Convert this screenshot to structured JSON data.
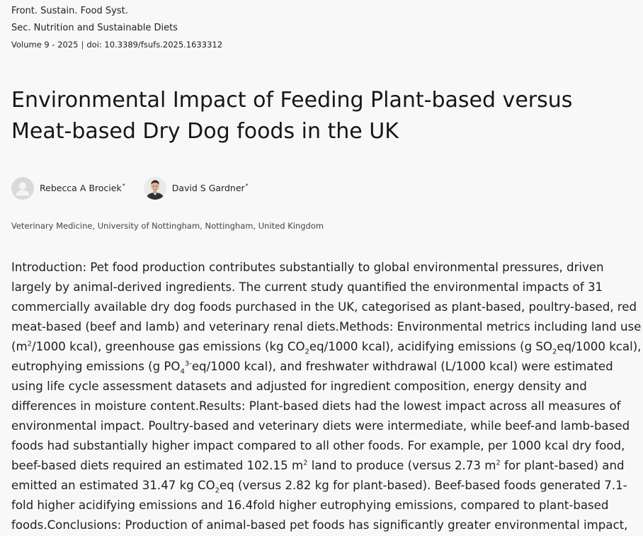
{
  "header": {
    "journal": "Front. Sustain. Food Syst.",
    "section": "Sec. Nutrition and Sustainable Diets",
    "volume": "Volume 9 - 2025",
    "separator": "|",
    "doi": "doi: 10.3389/fsufs.2025.1633312"
  },
  "title": "Environmental Impact of Feeding Plant-based versus Meat-based Dry Dog foods in the UK",
  "authors": [
    {
      "name": "Rebecca A Brociek",
      "marker": "*",
      "avatar": "placeholder-avatar-icon"
    },
    {
      "name": "David S Gardner",
      "marker": "*",
      "avatar": "author-photo"
    }
  ],
  "affiliation": "Veterinary Medicine, University of Nottingham, Nottingham, United Kingdom",
  "abstract": {
    "parts": [
      "Introduction: Pet food production contributes substantially to global environmental pressures, driven largely by animal-derived ingredients. The current study quantified the environmental impacts of 31 commercially available dry dog foods purchased in the UK, categorised as plant-based, poultry-based, red meat-based (beef and lamb) and veterinary renal diets.Methods: Environmental metrics including land use (m",
      "2",
      "/1000 kcal), greenhouse gas emissions (kg CO",
      "2",
      "eq/1000 kcal), acidifying emissions (g SO",
      "2",
      "eq/1000 kcal), eutrophying emissions (g PO",
      "4",
      "3-",
      "eq/1000 kcal), and freshwater withdrawal (L/1000 kcal) were estimated using life cycle assessment datasets and adjusted for ingredient composition, energy density and differences in moisture content.Results: Plant-based diets had the lowest impact across all measures of environmental impact. Poultry-based and veterinary diets were intermediate, while beef-and lamb-based foods had substantially higher impact compared to all other foods. For example, per 1000 kcal dry food, beef-based diets required an estimated 102.15 m",
      "2",
      " land to produce (versus 2.73 m",
      "2",
      " for plant-based) and emitted an estimated 31.47 kg CO",
      "2",
      "eq (versus 2.82 kg for plant-based). Beef-based foods generated 7.1-fold higher acidifying emissions and 16.4fold higher eutrophying emissions, compared to plant-based foods.Conclusions: Production of animal-based pet foods has significantly greater environmental impact,"
    ]
  },
  "colors": {
    "background": "#f8f8f8",
    "text": "#1b1b1b",
    "avatar_placeholder": "#d9d9d9"
  }
}
